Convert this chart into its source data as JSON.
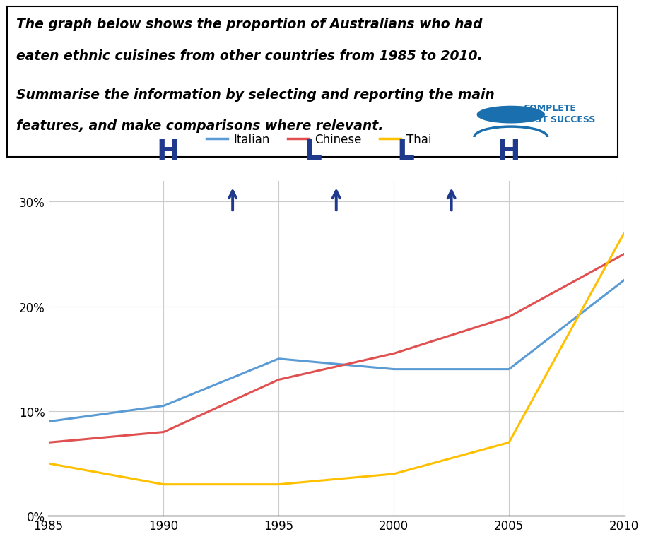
{
  "years": [
    1985,
    1990,
    1995,
    2000,
    2005,
    2010
  ],
  "italian": [
    9,
    10.5,
    15,
    14,
    14,
    22.5
  ],
  "chinese": [
    7,
    8,
    13,
    15.5,
    19,
    25
  ],
  "thai": [
    5,
    3,
    3,
    4,
    7,
    27
  ],
  "italian_color": "#5b9bd5",
  "chinese_color": "#e05050",
  "thai_color": "#ffc000",
  "ylim": [
    0,
    32
  ],
  "yticks": [
    0,
    10,
    20,
    30
  ],
  "ytick_labels": [
    "0%",
    "10%",
    "20%",
    "30%"
  ],
  "xticks": [
    1985,
    1990,
    1995,
    2000,
    2005,
    2010
  ],
  "title_line1": "The graph below shows the proportion of Australians who had",
  "title_line2": "eaten ethnic cuisines from other countries from 1985 to 2010.",
  "subtitle_line1": "Summarise the information by selecting and reporting the main",
  "subtitle_line2": "features, and make comparisons where relevant.",
  "annotation_color": "#1f3a8c",
  "background_color": "#ffffff",
  "grid_color": "#cccccc",
  "logo_color": "#1a6faf",
  "logo_text": "COMPLETE\nTEST SUCCESS"
}
